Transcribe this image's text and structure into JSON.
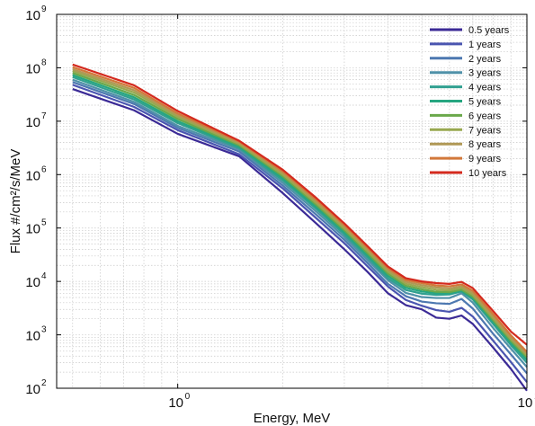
{
  "chart_data": {
    "type": "line",
    "xscale": "log",
    "yscale": "log",
    "xlim": [
      0.45,
      10
    ],
    "ylim": [
      100,
      1000000000
    ],
    "xlabel": "Energy, MeV",
    "ylabel": "Flux #/cm²/s/MeV",
    "grid": true,
    "legend_position": "top-right",
    "x_ticks": [
      {
        "base": "10",
        "exp": "0",
        "value": 1
      },
      {
        "base": "10",
        "exp": "1",
        "value": 10
      }
    ],
    "y_ticks": [
      {
        "base": "10",
        "exp": "2",
        "value": 100
      },
      {
        "base": "10",
        "exp": "3",
        "value": 1000
      },
      {
        "base": "10",
        "exp": "4",
        "value": 10000
      },
      {
        "base": "10",
        "exp": "5",
        "value": 100000
      },
      {
        "base": "10",
        "exp": "6",
        "value": 1000000
      },
      {
        "base": "10",
        "exp": "7",
        "value": 10000000
      },
      {
        "base": "10",
        "exp": "8",
        "value": 100000000
      },
      {
        "base": "10",
        "exp": "9",
        "value": 1000000000
      }
    ],
    "x": [
      0.5,
      0.75,
      1.0,
      1.5,
      2.0,
      2.5,
      3.0,
      3.5,
      4.0,
      4.5,
      5.0,
      5.5,
      6.0,
      6.5,
      7.0,
      8.0,
      9.0,
      10.0
    ],
    "series": [
      {
        "name": "0.5 years",
        "color": "#3b2a96",
        "values": [
          40000000,
          16000000,
          5800000,
          2200000,
          450000,
          120000,
          40000,
          15000,
          6000,
          3600,
          3000,
          2100,
          2000,
          2300,
          1600,
          580,
          230,
          90
        ]
      },
      {
        "name": "1 years",
        "color": "#4a55b0",
        "values": [
          48000000,
          18500000,
          6800000,
          2400000,
          550000,
          150000,
          52000,
          19000,
          8000,
          4500,
          3500,
          2900,
          2700,
          3200,
          2200,
          780,
          310,
          130
        ]
      },
      {
        "name": "2 years",
        "color": "#4d78b0",
        "values": [
          54000000,
          21000000,
          7500000,
          2700000,
          620000,
          175000,
          60000,
          22000,
          9000,
          5300,
          4200,
          3900,
          3800,
          4700,
          3100,
          1050,
          430,
          190
        ]
      },
      {
        "name": "3 years",
        "color": "#4f91a8",
        "values": [
          60000000,
          23000000,
          8200000,
          2950000,
          700000,
          200000,
          68000,
          25000,
          10500,
          6100,
          5100,
          4900,
          4900,
          6000,
          4000,
          1350,
          550,
          250
        ]
      },
      {
        "name": "4 years",
        "color": "#31a090",
        "values": [
          67000000,
          25500000,
          9200000,
          3150000,
          780000,
          225000,
          76000,
          28000,
          11500,
          6900,
          5900,
          5600,
          5700,
          6500,
          4600,
          1600,
          640,
          300
        ]
      },
      {
        "name": "5 years",
        "color": "#26a680",
        "values": [
          73000000,
          28000000,
          10000000,
          3350000,
          850000,
          245000,
          83000,
          30500,
          12700,
          7600,
          6500,
          6000,
          6000,
          6700,
          4900,
          1750,
          700,
          340
        ]
      },
      {
        "name": "6 years",
        "color": "#6aa84a",
        "values": [
          80000000,
          31000000,
          11000000,
          3550000,
          930000,
          268000,
          91000,
          33500,
          14000,
          8300,
          7100,
          6400,
          6300,
          7000,
          5200,
          1900,
          770,
          380
        ]
      },
      {
        "name": "7 years",
        "color": "#98a850",
        "values": [
          87000000,
          34500000,
          12000000,
          3750000,
          1000000,
          290000,
          98000,
          36500,
          15200,
          9000,
          7800,
          7000,
          6800,
          7500,
          5600,
          2050,
          830,
          410
        ]
      },
      {
        "name": "8 years",
        "color": "#b09855",
        "values": [
          94000000,
          38000000,
          13000000,
          3950000,
          1080000,
          313000,
          106000,
          39500,
          16500,
          9800,
          8500,
          7700,
          7400,
          8100,
          6100,
          2200,
          890,
          440
        ]
      },
      {
        "name": "9 years",
        "color": "#d2783a",
        "values": [
          103000000,
          42000000,
          14000000,
          4150000,
          1150000,
          335000,
          114000,
          42500,
          17700,
          10600,
          9300,
          8400,
          8100,
          8800,
          6700,
          2450,
          980,
          480
        ]
      },
      {
        "name": "10 years",
        "color": "#d42a1e",
        "values": [
          115000000,
          47000000,
          15500000,
          4300000,
          1230000,
          360000,
          122000,
          45500,
          19000,
          11500,
          10000,
          9300,
          9000,
          9800,
          7500,
          2800,
          1150,
          650
        ]
      }
    ]
  }
}
